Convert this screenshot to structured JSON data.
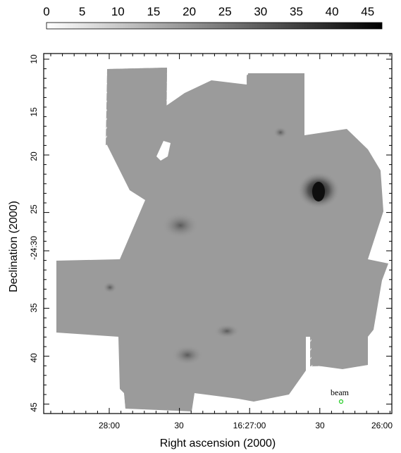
{
  "colorbar": {
    "tick_labels": [
      "0",
      "5",
      "10",
      "15",
      "20",
      "25",
      "30",
      "35",
      "40",
      "45"
    ],
    "range": [
      0,
      47
    ]
  },
  "axes": {
    "xlabel": "Right ascension (2000)",
    "ylabel": "Declination (2000)",
    "x_tick_labels": [
      "28:00",
      "30",
      "16:27:00",
      "30",
      "26:00"
    ],
    "y_tick_labels": [
      "10",
      "15",
      "20",
      "25",
      "-24:30",
      "35",
      "40",
      "45"
    ]
  },
  "beam_label": "beam",
  "colors": {
    "map_gray": "#9a9a9a",
    "beam_marker": "#22cc22"
  }
}
